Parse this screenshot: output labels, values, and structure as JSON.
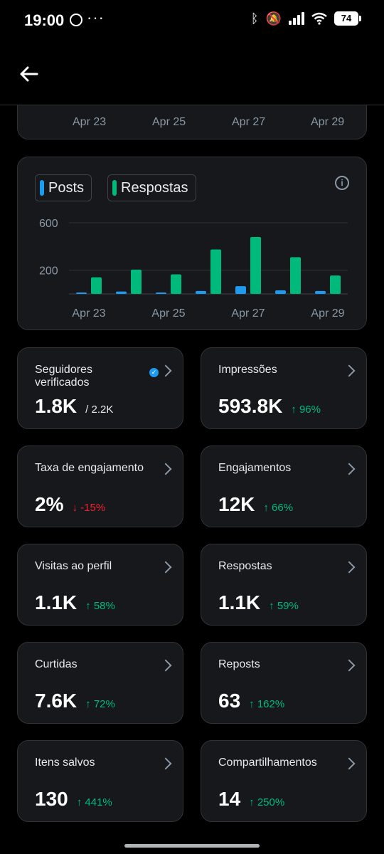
{
  "status_bar": {
    "time": "19:00",
    "dots": "···",
    "battery": "74",
    "icons": [
      "whatsapp-icon",
      "bluetooth-icon",
      "mute-icon",
      "signal-icon",
      "wifi-icon",
      "battery-icon"
    ]
  },
  "header": {
    "back_icon": "arrow-left-icon"
  },
  "top_chart": {
    "x_labels": [
      "Apr 23",
      "Apr 25",
      "Apr 27",
      "Apr 29"
    ]
  },
  "chart_data": {
    "type": "bar",
    "categories": [
      "Apr 23",
      "Apr 24",
      "Apr 25",
      "Apr 26",
      "Apr 27",
      "Apr 28",
      "Apr 29"
    ],
    "x_tick_labels": [
      "Apr 23",
      "Apr 25",
      "Apr 27",
      "Apr 29"
    ],
    "y_tick_labels": [
      "600",
      "200"
    ],
    "ylim": [
      0,
      600
    ],
    "grid": true,
    "legend_placement": "top-left",
    "series": [
      {
        "name": "Posts",
        "color": "#1d9bf0",
        "values": [
          5,
          20,
          10,
          25,
          65,
          30,
          25
        ]
      },
      {
        "name": "Respostas",
        "color": "#00ba7c",
        "values": [
          140,
          205,
          165,
          375,
          480,
          310,
          155
        ]
      }
    ],
    "info_icon": "info-icon"
  },
  "metrics": [
    {
      "label": "Seguidores verificados",
      "value": "1.8K",
      "sub": "/ 2.2K",
      "delta": "",
      "direction": "none",
      "verified": true
    },
    {
      "label": "Impressões",
      "value": "593.8K",
      "sub": "",
      "delta": "↑ 96%",
      "direction": "up",
      "verified": false
    },
    {
      "label": "Taxa de engajamento",
      "value": "2%",
      "sub": "",
      "delta": "↓ -15%",
      "direction": "down",
      "verified": false
    },
    {
      "label": "Engajamentos",
      "value": "12K",
      "sub": "",
      "delta": "↑ 66%",
      "direction": "up",
      "verified": false
    },
    {
      "label": "Visitas ao perfil",
      "value": "1.1K",
      "sub": "",
      "delta": "↑ 58%",
      "direction": "up",
      "verified": false
    },
    {
      "label": "Respostas",
      "value": "1.1K",
      "sub": "",
      "delta": "↑ 59%",
      "direction": "up",
      "verified": false
    },
    {
      "label": "Curtidas",
      "value": "7.6K",
      "sub": "",
      "delta": "↑ 72%",
      "direction": "up",
      "verified": false
    },
    {
      "label": "Reposts",
      "value": "63",
      "sub": "",
      "delta": "↑ 162%",
      "direction": "up",
      "verified": false
    },
    {
      "label": "Itens salvos",
      "value": "130",
      "sub": "",
      "delta": "↑ 441%",
      "direction": "up",
      "verified": false
    },
    {
      "label": "Compartilhamentos",
      "value": "14",
      "sub": "",
      "delta": "↑ 250%",
      "direction": "up",
      "verified": false
    }
  ],
  "colors": {
    "up": "#00ba7c",
    "down": "#f4212e",
    "card_bg": "#16181c",
    "border": "#2f3336"
  }
}
